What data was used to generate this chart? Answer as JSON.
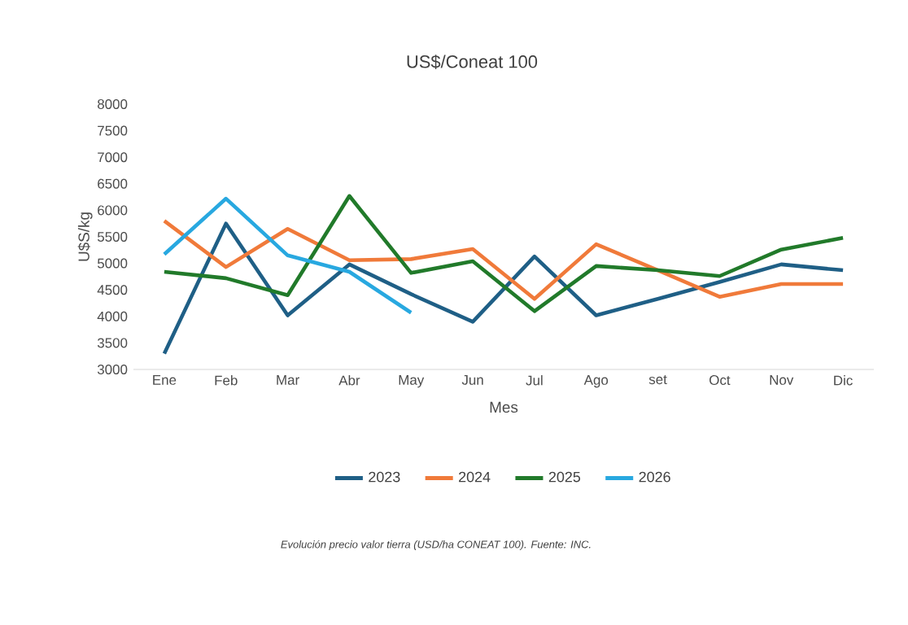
{
  "chart_data": {
    "type": "line",
    "title": "US$/Coneat 100",
    "xlabel": "Mes",
    "ylabel": "U$S/kg",
    "categories": [
      "Ene",
      "Feb",
      "Mar",
      "Abr",
      "May",
      "Jun",
      "Jul",
      "Ago",
      "set",
      "Oct",
      "Nov",
      "Dic"
    ],
    "series": [
      {
        "name": "2023",
        "color": "#1f5f86",
        "values": [
          3300,
          5750,
          4020,
          4980,
          4420,
          3900,
          5130,
          4020,
          4330,
          4650,
          4980,
          4870
        ]
      },
      {
        "name": "2024",
        "color": "#f07a3a",
        "values": [
          5800,
          4930,
          5650,
          5060,
          5080,
          5270,
          4330,
          5360,
          4870,
          4370,
          4610,
          4610
        ]
      },
      {
        "name": "2025",
        "color": "#217a2a",
        "values": [
          4840,
          4720,
          4400,
          6270,
          4820,
          5040,
          4100,
          4950,
          4870,
          4760,
          5260,
          5480
        ]
      },
      {
        "name": "2026",
        "color": "#28a8e0",
        "values": [
          5170,
          6220,
          5150,
          4840,
          4070,
          null,
          null,
          null,
          null,
          null,
          null,
          null
        ]
      }
    ],
    "ylim": [
      3000,
      8000
    ],
    "yticks": [
      3000,
      3500,
      4000,
      4500,
      5000,
      5500,
      6000,
      6500,
      7000,
      7500,
      8000
    ],
    "grid": false,
    "legend": "bottom",
    "marker": "none",
    "line_style": "solid",
    "annotations": [
      "Evolución precio valor tierra (USD/ha CONEAT 100). Fuente: INC."
    ]
  }
}
